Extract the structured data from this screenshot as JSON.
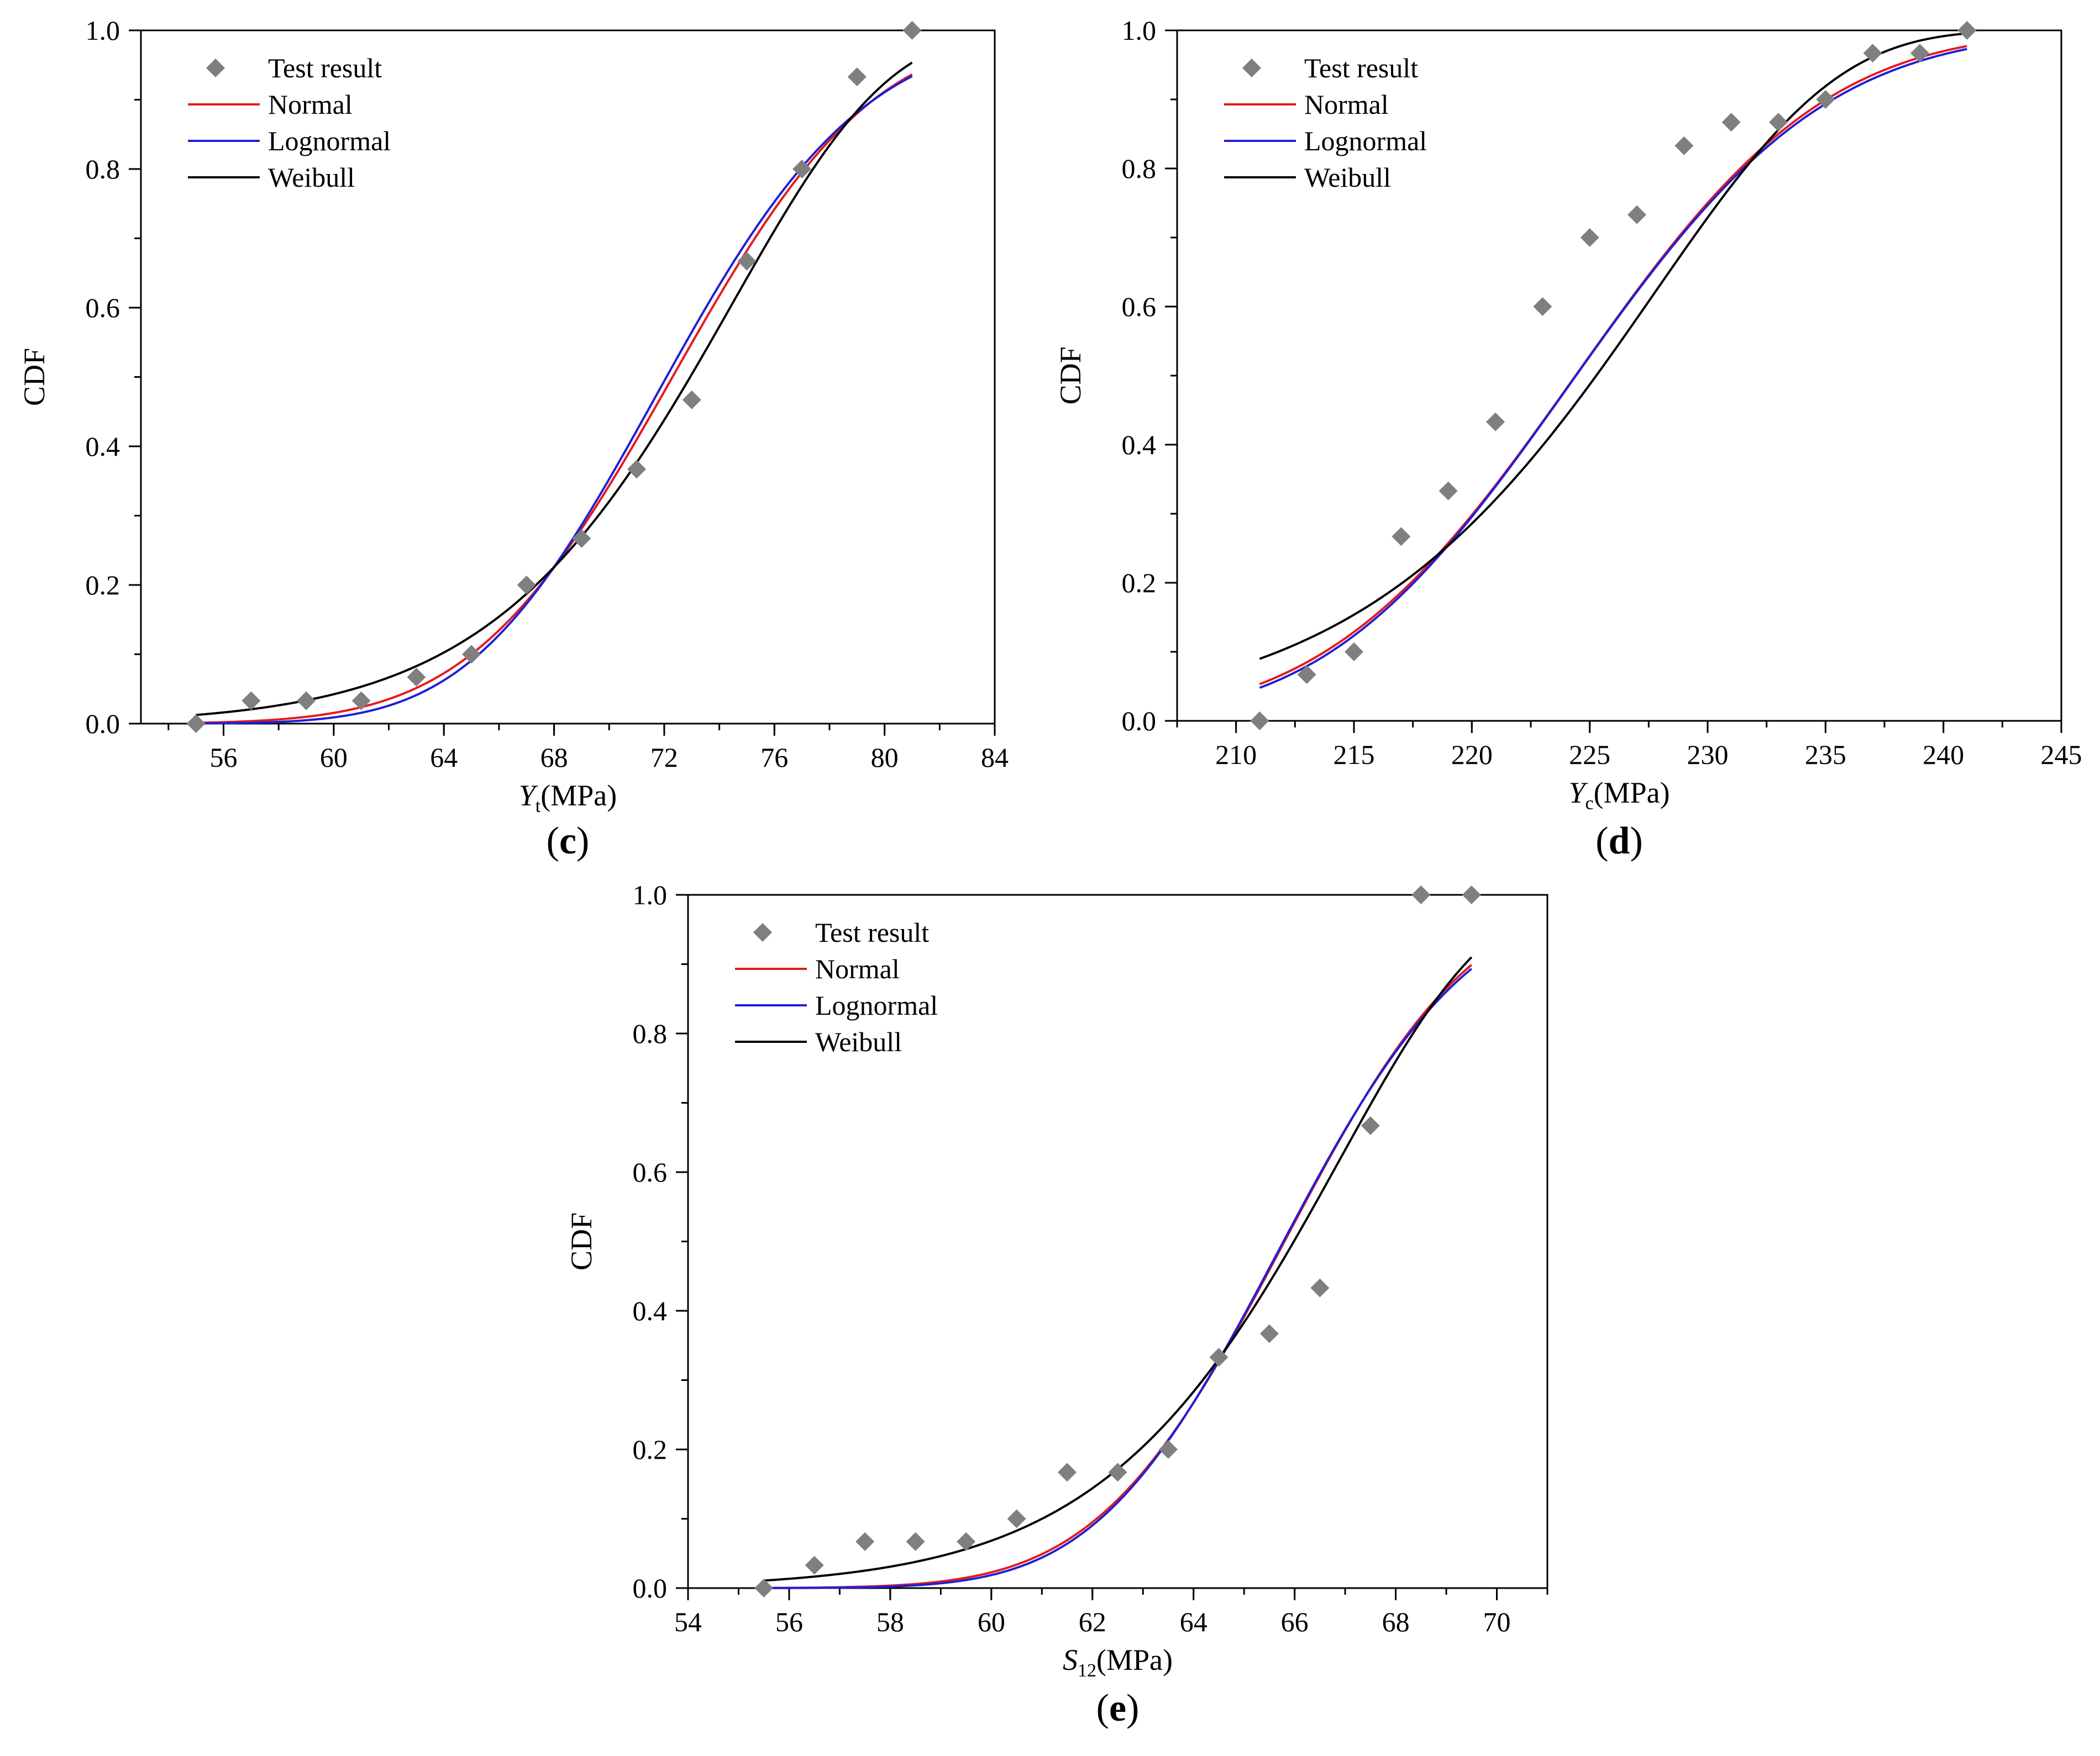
{
  "figure": {
    "colors": {
      "normal": "#e41a1c",
      "lognormal": "#1f1fd6",
      "weibull": "#000000",
      "test": "#7f7f7f",
      "axis": "#000000"
    }
  },
  "chart_data": [
    {
      "id": "c",
      "type": "line",
      "panel_label": "(c)",
      "panel_letter": "c",
      "ylabel": "CDF",
      "xlabel": {
        "symbol": "Y",
        "subscript": "t",
        "unit": "(MPa)"
      },
      "xlim": [
        53,
        84
      ],
      "ylim": [
        0,
        1
      ],
      "xticks": [
        56,
        60,
        64,
        68,
        72,
        76,
        80,
        84
      ],
      "yticks": [
        0.0,
        0.2,
        0.4,
        0.6,
        0.8,
        1.0
      ],
      "ytick_labels": [
        "0.0",
        "0.2",
        "0.4",
        "0.6",
        "0.8",
        "1.0"
      ],
      "xminor_step": 2,
      "yminor_step": 0.1,
      "legend": [
        "Test result",
        "Normal",
        "Lognormal",
        "Weibull"
      ],
      "legend_position": "top-left",
      "test_result": {
        "x": [
          55,
          57,
          59,
          61,
          63,
          65,
          67,
          69,
          71,
          73,
          75,
          77,
          79,
          81
        ],
        "y": [
          0.0,
          0.033,
          0.033,
          0.033,
          0.067,
          0.1,
          0.2,
          0.267,
          0.367,
          0.467,
          0.667,
          0.8,
          0.933,
          1.0
        ]
      },
      "curves": {
        "x_range": [
          55,
          81
        ],
        "normal": {
          "mean": 72.3,
          "std": 5.7
        },
        "lognormal": {
          "mu": 4.2778,
          "sigma": 0.0775
        },
        "weibull": {
          "scale": 74.85,
          "shape": 14.2
        }
      }
    },
    {
      "id": "d",
      "type": "line",
      "panel_label": "(d)",
      "panel_letter": "d",
      "ylabel": "CDF",
      "xlabel": {
        "symbol": "Y",
        "subscript": "c",
        "unit": "(MPa)"
      },
      "xlim": [
        207.5,
        245
      ],
      "ylim": [
        0,
        1
      ],
      "xticks": [
        210,
        215,
        220,
        225,
        230,
        235,
        240,
        245
      ],
      "yticks": [
        0.0,
        0.2,
        0.4,
        0.6,
        0.8,
        1.0
      ],
      "ytick_labels": [
        "0.0",
        "0.2",
        "0.4",
        "0.6",
        "0.8",
        "1.0"
      ],
      "xminor_step": 2.5,
      "yminor_step": 0.1,
      "legend": [
        "Test result",
        "Normal",
        "Lognormal",
        "Weibull"
      ],
      "legend_position": "top-left",
      "test_result": {
        "x": [
          211,
          213,
          215,
          217,
          219,
          221,
          223,
          225,
          227,
          229,
          231,
          233,
          235,
          237,
          239,
          241
        ],
        "y": [
          0.0,
          0.067,
          0.1,
          0.267,
          0.333,
          0.433,
          0.6,
          0.7,
          0.733,
          0.833,
          0.867,
          0.867,
          0.9,
          0.967,
          0.967,
          1.0
        ]
      },
      "curves": {
        "x_range": [
          211,
          241
        ],
        "normal": {
          "mean": 224.4,
          "std": 8.3
        },
        "lognormal": {
          "mu": 5.4135,
          "sigma": 0.037
        },
        "weibull": {
          "scale": 228.0,
          "shape": 30.5
        }
      }
    },
    {
      "id": "e",
      "type": "line",
      "panel_label": "(e)",
      "panel_letter": "e",
      "ylabel": "CDF",
      "xlabel": {
        "symbol": "S",
        "subscript": "12",
        "unit": "(MPa)"
      },
      "xlim": [
        54,
        71
      ],
      "ylim": [
        0,
        1
      ],
      "xticks": [
        54,
        56,
        58,
        60,
        62,
        64,
        66,
        68,
        70
      ],
      "yticks": [
        0.0,
        0.2,
        0.4,
        0.6,
        0.8,
        1.0
      ],
      "ytick_labels": [
        "0.0",
        "0.2",
        "0.4",
        "0.6",
        "0.8",
        "1.0"
      ],
      "xminor_step": 1,
      "yminor_step": 0.1,
      "legend": [
        "Test result",
        "Normal",
        "Lognormal",
        "Weibull"
      ],
      "legend_position": "top-left",
      "test_result": {
        "x": [
          55.5,
          56.5,
          57.5,
          58.5,
          59.5,
          60.5,
          61.5,
          62.5,
          63.5,
          64.5,
          65.5,
          66.5,
          67.5,
          68.5,
          69.5
        ],
        "y": [
          0.0,
          0.033,
          0.067,
          0.067,
          0.067,
          0.1,
          0.167,
          0.167,
          0.2,
          0.333,
          0.367,
          0.433,
          0.667,
          1.0,
          1.0
        ]
      },
      "curves": {
        "x_range": [
          55.5,
          69.5
        ],
        "normal": {
          "mean": 65.8,
          "std": 2.9
        },
        "lognormal": {
          "mu": 4.1863,
          "sigma": 0.0442
        },
        "weibull": {
          "scale": 67.0,
          "shape": 24.0
        }
      }
    }
  ]
}
